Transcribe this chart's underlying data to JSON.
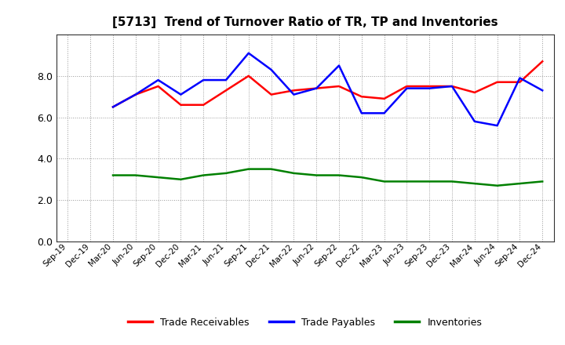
{
  "title": "[5713]  Trend of Turnover Ratio of TR, TP and Inventories",
  "x_labels": [
    "Sep-19",
    "Dec-19",
    "Mar-20",
    "Jun-20",
    "Sep-20",
    "Dec-20",
    "Mar-21",
    "Jun-21",
    "Sep-21",
    "Dec-21",
    "Mar-22",
    "Jun-22",
    "Sep-22",
    "Dec-22",
    "Mar-23",
    "Jun-23",
    "Sep-23",
    "Dec-23",
    "Mar-24",
    "Jun-24",
    "Sep-24",
    "Dec-24"
  ],
  "trade_receivables": [
    null,
    null,
    6.5,
    7.1,
    7.5,
    6.6,
    6.6,
    7.3,
    8.0,
    7.1,
    7.3,
    7.4,
    7.5,
    7.0,
    6.9,
    7.5,
    7.5,
    7.5,
    7.2,
    7.7,
    7.7,
    8.7
  ],
  "trade_payables": [
    null,
    null,
    6.5,
    7.1,
    7.8,
    7.1,
    7.8,
    7.8,
    9.1,
    8.3,
    7.1,
    7.4,
    8.5,
    6.2,
    6.2,
    7.4,
    7.4,
    7.5,
    5.8,
    5.6,
    7.9,
    7.3
  ],
  "inventories": [
    null,
    null,
    3.2,
    3.2,
    3.1,
    3.0,
    3.2,
    3.3,
    3.5,
    3.5,
    3.3,
    3.2,
    3.2,
    3.1,
    2.9,
    2.9,
    2.9,
    2.9,
    2.8,
    2.7,
    2.8,
    2.9
  ],
  "tr_color": "#ff0000",
  "tp_color": "#0000ff",
  "inv_color": "#008000",
  "ylim": [
    0.0,
    10.0
  ],
  "yticks": [
    0.0,
    2.0,
    4.0,
    6.0,
    8.0
  ],
  "background_color": "#ffffff",
  "grid_color": "#999999",
  "legend_labels": [
    "Trade Receivables",
    "Trade Payables",
    "Inventories"
  ]
}
